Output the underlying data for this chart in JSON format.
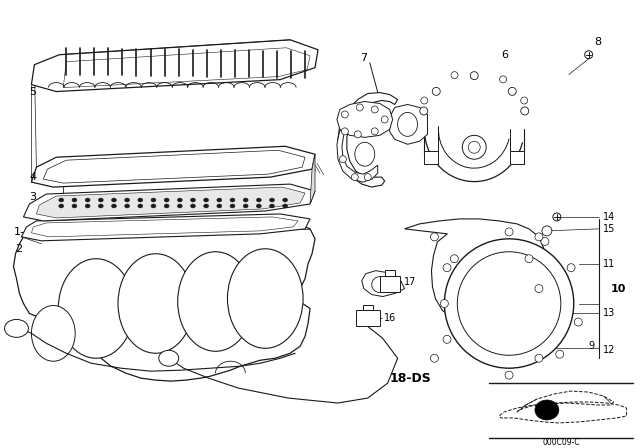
{
  "background_color": "#ffffff",
  "line_color": "#1a1a1a",
  "fig_width": 6.4,
  "fig_height": 4.48,
  "dpi": 100,
  "border_color": "#cccccc",
  "diagram_code": "000C09-C"
}
